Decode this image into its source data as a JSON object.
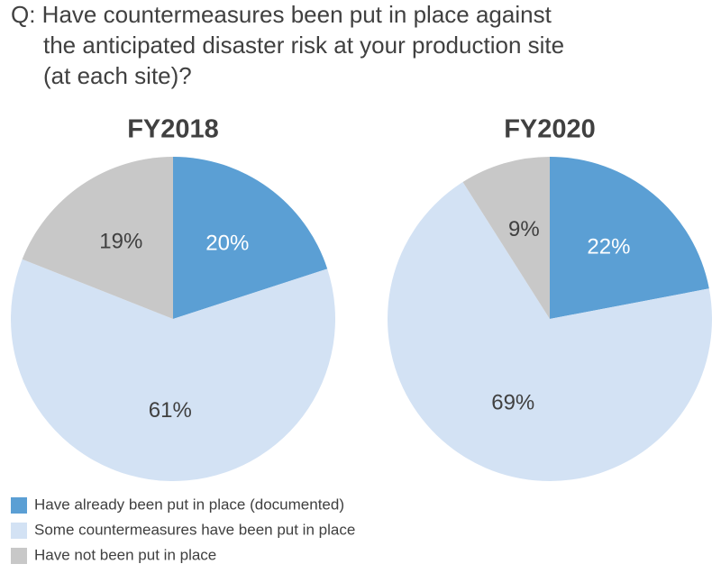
{
  "title": [
    "Q: Have countermeasures been put in place against",
    "the anticipated disaster risk at your production site",
    "(at each site)?"
  ],
  "chart_data": [
    {
      "type": "pie",
      "title": "FY2018",
      "categories": [
        "Have already been put in place (documented)",
        "Some countermeasures have been put in place",
        "Have not been put in place"
      ],
      "values": [
        20,
        61,
        19
      ],
      "value_labels": [
        "20%",
        "61%",
        "19%"
      ],
      "colors": [
        "#5b9fd4",
        "#d3e2f4",
        "#c8c8c8"
      ]
    },
    {
      "type": "pie",
      "title": "FY2020",
      "categories": [
        "Have already been put in place (documented)",
        "Some countermeasures have been put in place",
        "Have not been put in place"
      ],
      "values": [
        22,
        69,
        9
      ],
      "value_labels": [
        "22%",
        "69%",
        "9%"
      ],
      "colors": [
        "#5b9fd4",
        "#d3e2f4",
        "#c8c8c8"
      ]
    }
  ]
}
